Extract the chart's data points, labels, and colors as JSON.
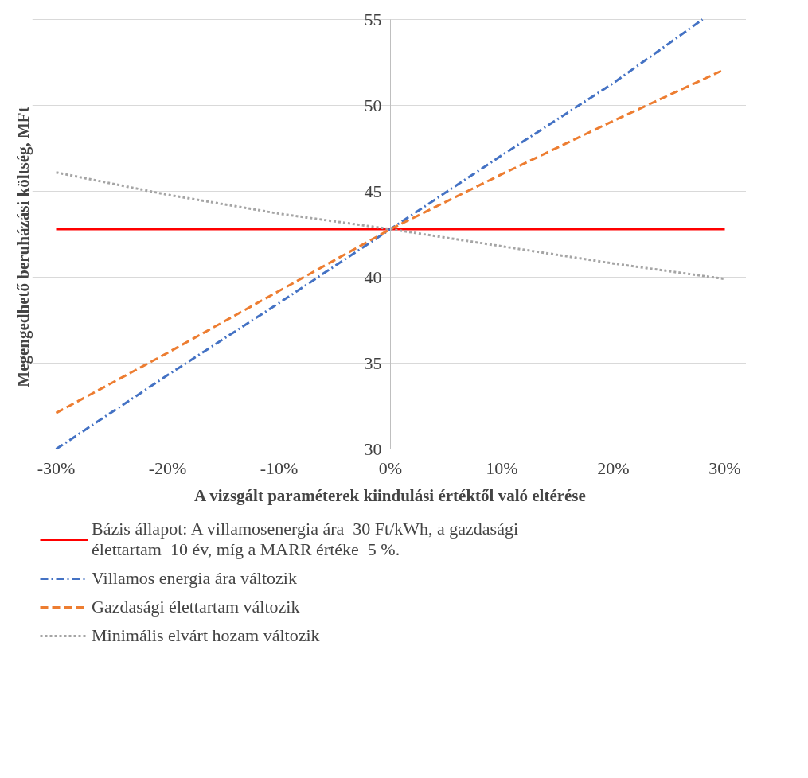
{
  "chart_data": {
    "type": "line",
    "xlabel": "A vizsgált paraméterek kiindulási értéktől való eltérése",
    "ylabel": "Megengedhető beruházási költség, MFt",
    "xlim": [
      -30,
      30
    ],
    "ylim": [
      30,
      55
    ],
    "xticks": [
      {
        "value": -30,
        "label": "-30%"
      },
      {
        "value": -20,
        "label": "-20%"
      },
      {
        "value": -10,
        "label": "-10%"
      },
      {
        "value": 0,
        "label": "0%"
      },
      {
        "value": 10,
        "label": "10%"
      },
      {
        "value": 20,
        "label": "20%"
      },
      {
        "value": 30,
        "label": "30%"
      }
    ],
    "yticks": [
      30,
      35,
      40,
      45,
      50,
      55
    ],
    "grid": "y",
    "legend": "bottom",
    "series": [
      {
        "name": "Bázis állapot: A villamosenergia ára  30 Ft/kWh, a gazdasági élettartam  10 év, míg a MARR értéke  5 %.",
        "color": "#ff0000",
        "line_style": "solid",
        "x": [
          -30,
          30
        ],
        "values": [
          42.8,
          42.8
        ]
      },
      {
        "name": "Villamos energia ára változik",
        "color": "#4472c4",
        "line_style": "dashdot",
        "x": [
          -30,
          -20,
          -10,
          0,
          10,
          20,
          28
        ],
        "values": [
          30,
          34.3,
          38.5,
          42.8,
          47.1,
          51.3,
          55
        ]
      },
      {
        "name": "Gazdasági élettartam változik",
        "color": "#ed7d31",
        "line_style": "dashed",
        "x": [
          -30,
          -20,
          -10,
          0,
          10,
          20,
          30
        ],
        "values": [
          32.1,
          35.6,
          39.2,
          42.8,
          46.0,
          49.1,
          52.1
        ]
      },
      {
        "name": "Minimális elvárt hozam változik",
        "color": "#a5a5a5",
        "line_style": "dotted",
        "x": [
          -30,
          -20,
          -10,
          0,
          10,
          20,
          30
        ],
        "values": [
          46.1,
          44.8,
          43.7,
          42.8,
          41.8,
          40.8,
          39.9
        ]
      }
    ]
  }
}
